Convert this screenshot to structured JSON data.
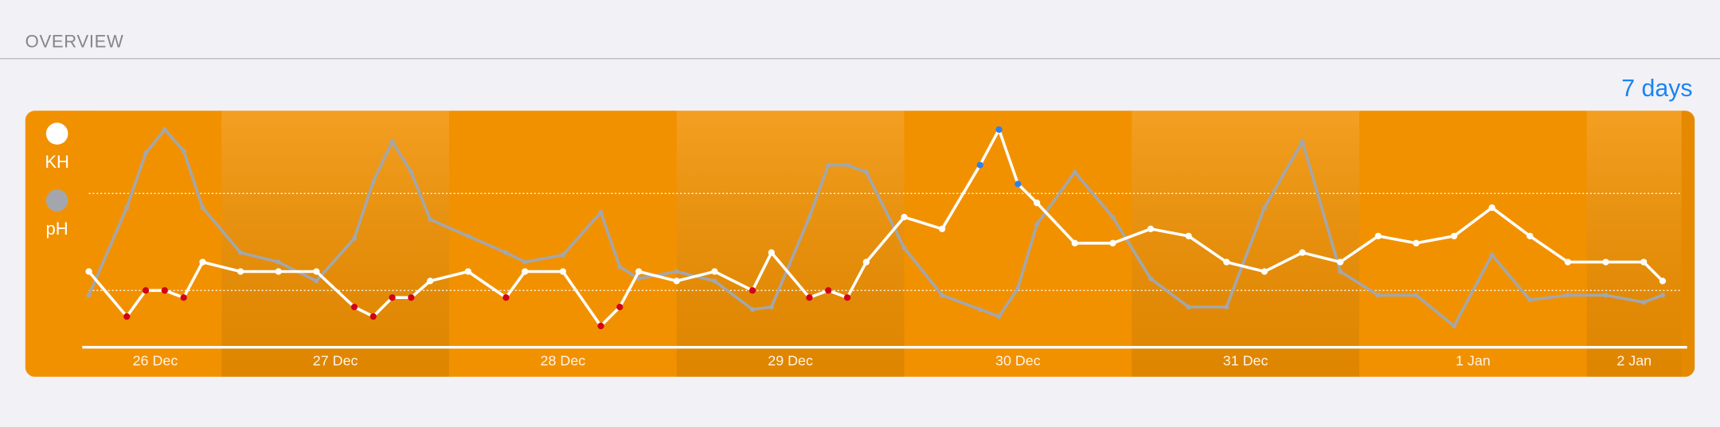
{
  "header": {
    "title": "OVERVIEW",
    "range": "7 days"
  },
  "chart_data": {
    "type": "line",
    "x": [
      10,
      14,
      16,
      18,
      20,
      22,
      26,
      30,
      34,
      38,
      40,
      42,
      44,
      46,
      50,
      54,
      56,
      60,
      64,
      66,
      68,
      72,
      76,
      80,
      82,
      86,
      88,
      90,
      92,
      96,
      100,
      104,
      106,
      108,
      110,
      114,
      118,
      122,
      126,
      130,
      134,
      138,
      142,
      146,
      150,
      154,
      158,
      162,
      166,
      170,
      174,
      176
    ],
    "xlim": [
      10,
      178
    ],
    "xticks": [
      {
        "value": 17,
        "label": "26 Dec"
      },
      {
        "value": 36,
        "label": "27 Dec"
      },
      {
        "value": 60,
        "label": "28 Dec"
      },
      {
        "value": 84,
        "label": "29 Dec"
      },
      {
        "value": 108,
        "label": "30 Dec"
      },
      {
        "value": 132,
        "label": "31 Dec"
      },
      {
        "value": 156,
        "label": "1 Jan"
      },
      {
        "value": 173,
        "label": "2 Jan"
      }
    ],
    "day_starts": [
      24,
      48,
      72,
      96,
      120,
      144,
      168
    ],
    "ylim": [
      0,
      100
    ],
    "reference_lines": [
      24,
      65
    ],
    "low_color": "#d0021b",
    "high_color": "#2f80ed",
    "series": [
      {
        "name": "KH",
        "color": "#ffffff",
        "markers": true,
        "values": [
          32,
          13,
          24,
          24,
          21,
          36,
          32,
          32,
          32,
          17,
          13,
          21,
          21,
          28,
          32,
          21,
          32,
          32,
          9,
          17,
          32,
          28,
          32,
          24,
          40,
          21,
          24,
          21,
          36,
          55,
          50,
          77,
          92,
          69,
          61,
          44,
          44,
          50,
          47,
          36,
          32,
          40,
          36,
          47,
          44,
          47,
          59,
          47,
          36,
          36,
          36,
          28
        ]
      },
      {
        "name": "pH",
        "color": "#a3a7ad",
        "markers": false,
        "values": [
          22,
          59,
          82,
          92,
          83,
          59,
          40,
          36,
          28,
          46,
          70,
          87,
          74,
          54,
          47,
          40,
          36,
          39,
          57,
          34,
          29,
          32,
          28,
          16,
          17,
          55,
          77,
          77,
          74,
          42,
          22,
          16,
          13,
          25,
          52,
          74,
          55,
          29,
          17,
          17,
          59,
          87,
          32,
          22,
          22,
          9,
          39,
          20,
          22,
          22,
          19,
          22
        ]
      }
    ]
  }
}
